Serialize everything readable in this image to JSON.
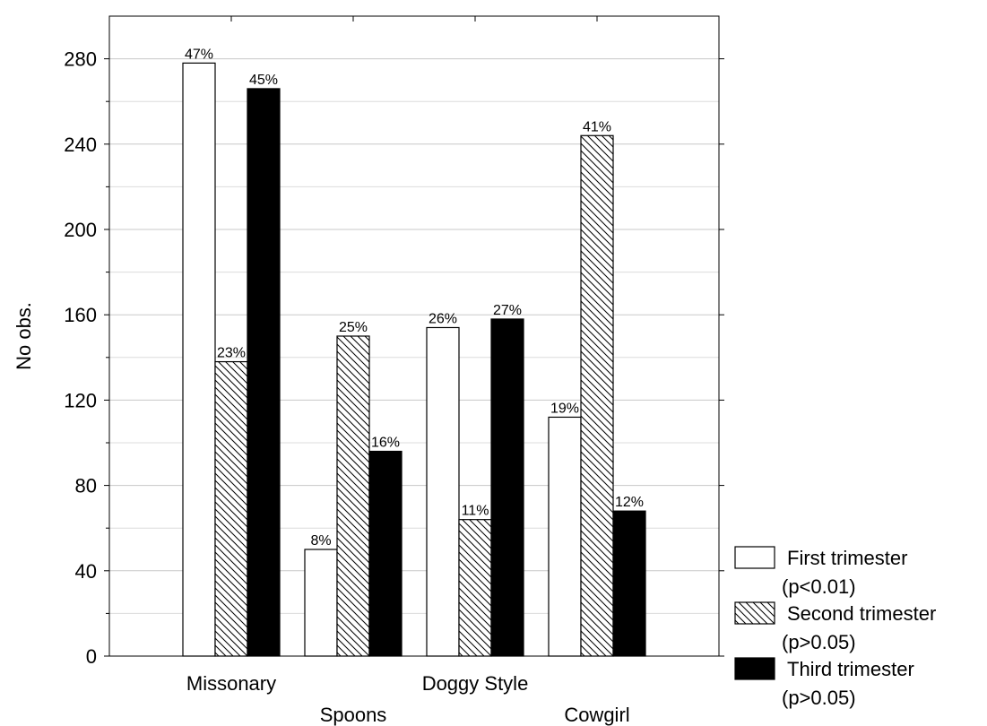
{
  "chart_data": {
    "type": "bar",
    "categories": [
      "Missonary",
      "Spoons",
      "Doggy Style",
      "Cowgirl"
    ],
    "series": [
      {
        "name": "First trimester",
        "note": "(p<0.01)",
        "fill": "#ffffff",
        "values": [
          278,
          50,
          154,
          112
        ],
        "labels": [
          "47%",
          "8%",
          "26%",
          "19%"
        ]
      },
      {
        "name": "Second trimester",
        "note": "(p>0.05)",
        "fill": "hatch",
        "values": [
          138,
          150,
          64,
          244
        ],
        "labels": [
          "23%",
          "25%",
          "11%",
          "41%"
        ]
      },
      {
        "name": "Third trimester",
        "note": "(p>0.05)",
        "fill": "#000000",
        "values": [
          266,
          96,
          158,
          68
        ],
        "labels": [
          "45%",
          "16%",
          "27%",
          "12%"
        ]
      }
    ],
    "xlabel": "",
    "ylabel": "No obs.",
    "ylim": [
      0,
      300
    ],
    "yticks": [
      0,
      40,
      80,
      120,
      160,
      200,
      240,
      280
    ],
    "grid": true,
    "legend": "bottom-right"
  }
}
